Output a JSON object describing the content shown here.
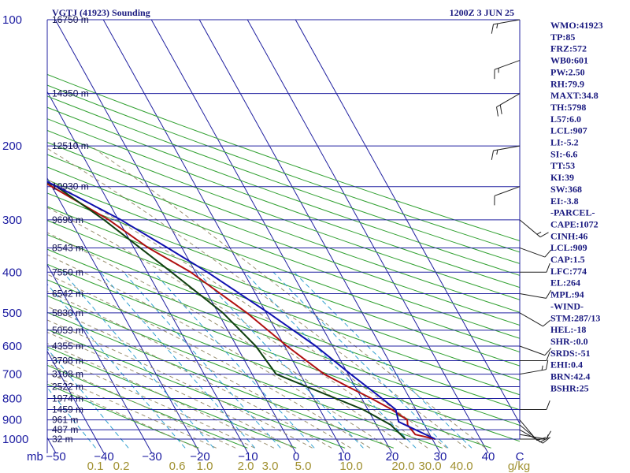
{
  "chart_data": {
    "type": "line",
    "title_left": "VGTJ (41923) Sounding",
    "title_right": "1200Z  3 JUN 25",
    "pressure_labels": [
      "100",
      "200",
      "300",
      "400",
      "500",
      "600",
      "700",
      "800",
      "900",
      "1000"
    ],
    "pressure_levels": [
      100,
      200,
      300,
      400,
      500,
      600,
      700,
      800,
      900,
      1000
    ],
    "temperature_labels": [
      "−50",
      "−40",
      "−30",
      "−20",
      "−10",
      "0",
      "10",
      "20",
      "30",
      "40",
      "C"
    ],
    "temperature_values": [
      -50,
      -40,
      -30,
      -20,
      -10,
      0,
      10,
      20,
      30,
      40
    ],
    "axis_corner_label": "mb",
    "mixing_ratio_labels": [
      "0.1",
      "0.2",
      "0.6",
      "1.0",
      "2.0",
      "3.0",
      "5.0",
      "10.0",
      "20.0",
      "30.0",
      "40.0",
      "g/kg"
    ],
    "height_labels": [
      {
        "p": 100,
        "text": "16750 m"
      },
      {
        "p": 150,
        "text": "14350 m"
      },
      {
        "p": 200,
        "text": "12510 m"
      },
      {
        "p": 250,
        "text": "10930 m"
      },
      {
        "p": 300,
        "text": "9690 m"
      },
      {
        "p": 350,
        "text": "8543 m"
      },
      {
        "p": 400,
        "text": "7550 m"
      },
      {
        "p": 450,
        "text": "6542 m"
      },
      {
        "p": 500,
        "text": "5830 m"
      },
      {
        "p": 550,
        "text": "5059 m"
      },
      {
        "p": 600,
        "text": "4355 m"
      },
      {
        "p": 650,
        "text": "3708 m"
      },
      {
        "p": 700,
        "text": "3108 m"
      },
      {
        "p": 750,
        "text": "2522 m"
      },
      {
        "p": 800,
        "text": "1974 m"
      },
      {
        "p": 850,
        "text": "1459 m"
      },
      {
        "p": 900,
        "text": "961 m"
      },
      {
        "p": 950,
        "text": "487 m"
      },
      {
        "p": 1000,
        "text": "32 m"
      }
    ],
    "series": [
      {
        "key": "temperature",
        "color": "#b01010",
        "points": [
          [
            1000,
            30.6
          ],
          [
            975,
            27.0
          ],
          [
            925,
            26.5
          ],
          [
            900,
            27.0
          ],
          [
            850,
            25.0
          ],
          [
            800,
            22.0
          ],
          [
            750,
            18.5
          ],
          [
            700,
            15.0
          ],
          [
            600,
            10.5
          ],
          [
            500,
            6.0
          ],
          [
            400,
            -1.0
          ],
          [
            350,
            -7.0
          ],
          [
            300,
            -12.0
          ],
          [
            250,
            -20.0
          ],
          [
            200,
            -31.0
          ],
          [
            150,
            -45.0
          ],
          [
            100,
            -60.0
          ]
        ]
      },
      {
        "key": "dewpoint",
        "color": "#104010",
        "points": [
          [
            1000,
            24.4
          ],
          [
            925,
            23.0
          ],
          [
            850,
            19.0
          ],
          [
            700,
            5.0
          ],
          [
            600,
            4.0
          ],
          [
            500,
            1.0
          ],
          [
            400,
            -5.0
          ],
          [
            300,
            -13.0
          ],
          [
            250,
            -19.0
          ],
          [
            200,
            -34.0
          ],
          [
            150,
            -50.0
          ],
          [
            100,
            -68.0
          ]
        ]
      },
      {
        "key": "parcel",
        "color": "#1010b0",
        "points": [
          [
            1000,
            30.6
          ],
          [
            909,
            25.0
          ],
          [
            850,
            25.8
          ],
          [
            800,
            24.2
          ],
          [
            700,
            20.5
          ],
          [
            600,
            16.5
          ],
          [
            500,
            10.5
          ],
          [
            400,
            2.5
          ],
          [
            350,
            -3.0
          ],
          [
            300,
            -9.5
          ],
          [
            264,
            -16.0
          ],
          [
            200,
            -31.0
          ],
          [
            150,
            -47.0
          ],
          [
            100,
            -68.0
          ]
        ]
      }
    ],
    "wind_barbs": [
      {
        "p": 1000,
        "dir": 90,
        "spd": 5
      },
      {
        "p": 975,
        "dir": 100,
        "spd": 10
      },
      {
        "p": 950,
        "dir": 120,
        "spd": 10
      },
      {
        "p": 925,
        "dir": 130,
        "spd": 10
      },
      {
        "p": 900,
        "dir": 140,
        "spd": 10
      },
      {
        "p": 850,
        "dir": 90,
        "spd": 10
      },
      {
        "p": 700,
        "dir": 80,
        "spd": 15
      },
      {
        "p": 650,
        "dir": 90,
        "spd": 10
      },
      {
        "p": 600,
        "dir": 110,
        "spd": 10
      },
      {
        "p": 500,
        "dir": 120,
        "spd": 10
      },
      {
        "p": 450,
        "dir": 100,
        "spd": 10
      },
      {
        "p": 400,
        "dir": 90,
        "spd": 10
      },
      {
        "p": 350,
        "dir": 110,
        "spd": 10
      },
      {
        "p": 300,
        "dir": 130,
        "spd": 15
      },
      {
        "p": 250,
        "dir": 250,
        "spd": 10
      },
      {
        "p": 200,
        "dir": 260,
        "spd": 15
      },
      {
        "p": 150,
        "dir": 240,
        "spd": 20
      },
      {
        "p": 125,
        "dir": 250,
        "spd": 15
      },
      {
        "p": 100,
        "dir": 260,
        "spd": 15
      }
    ]
  },
  "indices": [
    "WMO:41923",
    "TP:85",
    "FRZ:572",
    "WB0:601",
    "PW:2.50",
    "RH:79.9",
    "MAXT:34.8",
    "TH:5798",
    "L57:6.0",
    "LCL:907",
    "LI:-5.2",
    "SI:-6.6",
    "TT:53",
    "KI:39",
    "SW:368",
    "EI:-3.8",
    "-PARCEL-",
    "CAPE:1072",
    "CINH:46",
    "LCL:909",
    "CAP:1.5",
    "LFC:774",
    "EL:264",
    "MPL:94",
    "-WIND-",
    "STM:287/13",
    "HEL:-18",
    "SHR-:0.0",
    "SRDS:-51",
    "EHI:0.4",
    "BRN:42.4",
    "BSHR:25"
  ],
  "colors": {
    "isobar": "#2020a0",
    "isotherm": "#2020a0",
    "dry_adiabat": "#30a030",
    "moist_adiabat": "#9a9070",
    "mixing_ratio": "#30a0d0"
  }
}
